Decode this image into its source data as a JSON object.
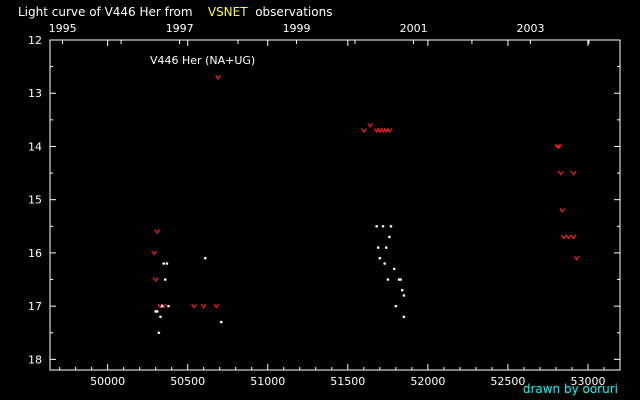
{
  "title": {
    "prefix": "Light curve of V446 Her from",
    "source": "VSNET",
    "suffix": "observations"
  },
  "credit": "drawn by ooruri",
  "chart_data": {
    "type": "scatter",
    "annotation": "V446 Her (NA+UG)",
    "xlabel": "",
    "ylabel": "",
    "xlim": [
      49640,
      53200
    ],
    "ylim": [
      18.2,
      12.0
    ],
    "y_inverted": true,
    "x_ticks": [
      50000,
      50500,
      51000,
      51500,
      52000,
      52500,
      53000
    ],
    "x_tick_labels": [
      "50000",
      "50500",
      "51000",
      "51500",
      "52000",
      "52500",
      "53000"
    ],
    "y_ticks": [
      12,
      13,
      14,
      15,
      16,
      17,
      18
    ],
    "y_tick_labels": [
      "12",
      "13",
      "14",
      "15",
      "16",
      "17",
      "18"
    ],
    "top_axis": {
      "label_ticks": [
        49719,
        50450,
        51180,
        51911,
        52641
      ],
      "labels": [
        "1995",
        "1997",
        "1999",
        "2001",
        "2003"
      ]
    },
    "grid": false,
    "colors": {
      "background": "#000000",
      "axis": "#ffffff",
      "upper_limit": "#ff2020",
      "observation": "#ffffff",
      "highlight": "#ffff33",
      "credit": "#00ffff"
    },
    "series": [
      {
        "kind": "upper-limit",
        "marker": "v",
        "color": "#ff2020",
        "points": [
          [
            50290,
            16.0
          ],
          [
            50300,
            16.5
          ],
          [
            50310,
            15.6
          ],
          [
            50330,
            17.0
          ],
          [
            50350,
            17.0
          ],
          [
            50540,
            17.0
          ],
          [
            50600,
            17.0
          ],
          [
            50680,
            17.0
          ],
          [
            50690,
            12.7
          ],
          [
            51600,
            13.7
          ],
          [
            51640,
            13.6
          ],
          [
            51680,
            13.7
          ],
          [
            51700,
            13.7
          ],
          [
            51720,
            13.7
          ],
          [
            51740,
            13.7
          ],
          [
            51760,
            13.7
          ],
          [
            52810,
            14.0
          ],
          [
            52820,
            14.0
          ],
          [
            52830,
            14.5
          ],
          [
            52840,
            15.2
          ],
          [
            52850,
            15.7
          ],
          [
            52880,
            15.7
          ],
          [
            52910,
            15.7
          ],
          [
            52910,
            14.5
          ],
          [
            52930,
            16.1
          ]
        ]
      },
      {
        "kind": "observation",
        "marker": "dot",
        "color": "#ffffff",
        "points": [
          [
            50300,
            17.1
          ],
          [
            50310,
            17.1
          ],
          [
            50320,
            17.5
          ],
          [
            50330,
            17.2
          ],
          [
            50340,
            17.0
          ],
          [
            50350,
            16.2
          ],
          [
            50360,
            16.5
          ],
          [
            50370,
            16.2
          ],
          [
            50380,
            17.0
          ],
          [
            50610,
            16.1
          ],
          [
            50710,
            17.3
          ],
          [
            51680,
            15.5
          ],
          [
            51690,
            15.9
          ],
          [
            51700,
            16.1
          ],
          [
            51720,
            15.5
          ],
          [
            51730,
            16.2
          ],
          [
            51740,
            15.9
          ],
          [
            51750,
            16.5
          ],
          [
            51760,
            15.7
          ],
          [
            51770,
            15.5
          ],
          [
            51790,
            16.3
          ],
          [
            51800,
            17.0
          ],
          [
            51820,
            16.5
          ],
          [
            51830,
            16.5
          ],
          [
            51840,
            16.7
          ],
          [
            51850,
            16.8
          ],
          [
            51850,
            17.2
          ]
        ]
      }
    ]
  }
}
